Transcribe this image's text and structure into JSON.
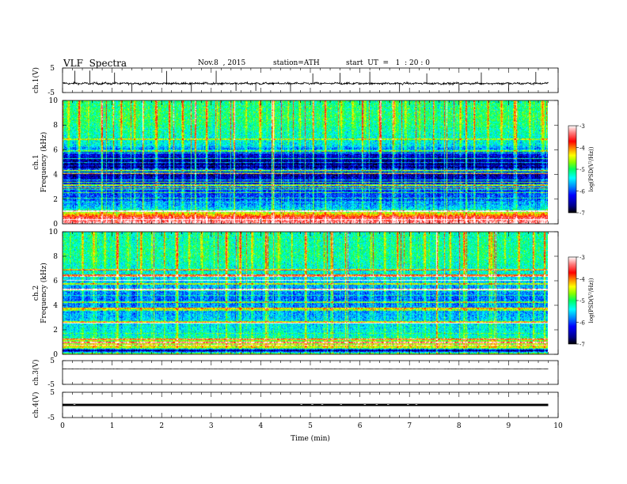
{
  "header": {
    "title": "VLF  Spectra",
    "date": "Nov.8  , 2015",
    "station": "station=ATH",
    "start_ut": "start  UT  =   1  : 20 : 0"
  },
  "chart_data": [
    {
      "type": "line",
      "panel": "ch1-waveform",
      "ylabel": "ch.1(V)",
      "yticks": [
        "5",
        "-5"
      ],
      "ylim": [
        -5,
        5
      ],
      "xlim": [
        0,
        10
      ],
      "x_end": 9.8,
      "baseline": -1.3,
      "noise_amplitude": 0.6,
      "spike_positions_min": [
        0.25,
        0.55,
        1.05,
        1.4,
        2.1,
        2.6,
        3.1,
        3.5,
        3.9,
        4.6,
        5.05,
        5.6,
        6.2,
        6.8,
        7.35,
        8.0,
        8.45,
        9.0,
        9.55
      ],
      "color": "#000000"
    },
    {
      "type": "heatmap",
      "panel": "ch1-spectrogram",
      "ylabel": "Frequency  (kHz)",
      "channel_label": "ch.1",
      "yticks": [
        "0",
        "2",
        "4",
        "6",
        "8",
        "10"
      ],
      "ylim": [
        0,
        10
      ],
      "xlim": [
        0,
        10
      ],
      "x_end": 9.8,
      "colorbar": {
        "label": "log(PSD(V²/Hz))",
        "ticks": [
          "-3",
          "-4",
          "-5",
          "-6",
          "-7"
        ],
        "range": [
          -7,
          -3
        ]
      },
      "frequency_profile_logpsd": [
        [
          0.0,
          -3.2
        ],
        [
          0.5,
          -3.6
        ],
        [
          0.9,
          -4.6
        ],
        [
          1.2,
          -5.5
        ],
        [
          2.0,
          -6.0
        ],
        [
          3.0,
          -6.1
        ],
        [
          4.0,
          -6.6
        ],
        [
          5.0,
          -6.7
        ],
        [
          5.8,
          -6.2
        ],
        [
          6.4,
          -5.4
        ],
        [
          7.5,
          -5.2
        ],
        [
          8.5,
          -5.0
        ],
        [
          10.0,
          -5.1
        ]
      ],
      "sferic_burst_times_min": [
        0.12,
        0.33,
        0.52,
        0.78,
        1.02,
        1.18,
        1.45,
        1.62,
        1.88,
        2.15,
        2.42,
        2.67,
        2.9,
        3.12,
        3.45,
        3.7,
        3.98,
        4.25,
        4.55,
        4.78,
        5.05,
        5.3,
        5.62,
        5.85,
        6.1,
        6.4,
        6.68,
        6.92,
        7.2,
        7.48,
        7.75,
        8.02,
        8.3,
        8.58,
        8.85,
        9.12,
        9.42,
        9.68
      ]
    },
    {
      "type": "heatmap",
      "panel": "ch2-spectrogram",
      "ylabel": "Frequency  (kHz)",
      "channel_label": "ch.2",
      "yticks": [
        "0",
        "2",
        "4",
        "6",
        "8",
        "10"
      ],
      "ylim": [
        0,
        10
      ],
      "xlim": [
        0,
        10
      ],
      "x_end": 9.8,
      "colorbar": {
        "label": "log(PSD(V²/Hz))",
        "ticks": [
          "-3",
          "-4",
          "-5",
          "-6",
          "-7"
        ],
        "range": [
          -7,
          -3
        ]
      },
      "frequency_profile_logpsd": [
        [
          0.0,
          -4.6
        ],
        [
          0.3,
          -6.9
        ],
        [
          0.5,
          -4.4
        ],
        [
          1.0,
          -4.7
        ],
        [
          1.5,
          -5.3
        ],
        [
          3.0,
          -5.6
        ],
        [
          4.5,
          -5.9
        ],
        [
          5.5,
          -5.7
        ],
        [
          6.5,
          -5.4
        ],
        [
          8.0,
          -5.1
        ],
        [
          10.0,
          -5.2
        ]
      ],
      "sferic_burst_times_min": [
        0.15,
        0.4,
        0.62,
        0.85,
        1.1,
        1.32,
        1.58,
        1.8,
        2.05,
        2.3,
        2.55,
        2.8,
        3.05,
        3.3,
        3.58,
        3.82,
        4.1,
        4.35,
        4.62,
        4.9,
        5.15,
        5.42,
        5.7,
        5.95,
        6.22,
        6.5,
        6.75,
        7.02,
        7.3,
        7.55,
        7.82,
        8.1,
        8.38,
        8.65,
        8.92,
        9.2,
        9.5,
        9.72
      ]
    },
    {
      "type": "line",
      "panel": "ch3-waveform",
      "ylabel": "ch.3(V)",
      "yticks": [
        "5",
        "-5"
      ],
      "ylim": [
        -5,
        5
      ],
      "xlim": [
        0,
        10
      ],
      "x_end": 9.8,
      "baseline": 1.5,
      "noise_amplitude": 0.05,
      "color": "#000000"
    },
    {
      "type": "line",
      "panel": "ch4-waveform",
      "ylabel": "ch.4(V)",
      "yticks": [
        "5",
        "-5"
      ],
      "ylim": [
        -5,
        5
      ],
      "xlim": [
        0,
        10
      ],
      "x_end": 9.8,
      "baseline": 0.0,
      "band_half_width": 0.45,
      "gap_positions_min": [
        0.22,
        4.8,
        5.02,
        5.22,
        5.6,
        6.08,
        6.32,
        6.55,
        6.95,
        7.12
      ],
      "color": "#000000"
    }
  ],
  "xaxis": {
    "label": "Time  (min)",
    "ticks": [
      "0",
      "1",
      "2",
      "3",
      "4",
      "5",
      "6",
      "7",
      "8",
      "9",
      "10"
    ],
    "range": [
      0,
      10
    ]
  },
  "colors": {
    "colormap": [
      "#000000",
      "#00008a",
      "#0000ff",
      "#0088ff",
      "#00ffff",
      "#00ff60",
      "#88ff00",
      "#ffff00",
      "#ff8800",
      "#ff0000",
      "#ff8080",
      "#ffffff"
    ]
  }
}
